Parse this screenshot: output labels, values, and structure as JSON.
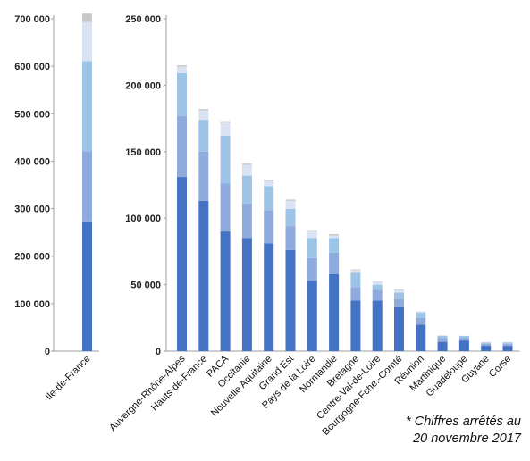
{
  "chart_data": [
    {
      "type": "bar",
      "stacked": true,
      "categories": [
        "Ile-de-France"
      ],
      "segment_colors": [
        "#4472c4",
        "#8faadc",
        "#9dc3e6",
        "#dae3f3",
        "#c9c9c9"
      ],
      "segments": [
        [
          273000,
          148000,
          190000,
          82000,
          18000
        ]
      ],
      "totals": [
        711000
      ],
      "ylim": [
        0,
        700000
      ],
      "yticks": [
        "0",
        "100 000",
        "200 000",
        "300 000",
        "400 000",
        "500 000",
        "600 000",
        "700 000"
      ],
      "grid": false
    },
    {
      "type": "bar",
      "stacked": true,
      "categories": [
        "Auvergne-Rhône-Alpes",
        "Hauts-de-France",
        "PACA",
        "Occitanie",
        "Nouvelle Aquitaine",
        "Grand Est",
        "Pays de la Loire",
        "Normandie",
        "Bretagne",
        "Centre-Val-de-Loire",
        "Bourgogne-Fche.-Comté",
        "Réunion",
        "Martinique",
        "Guadeloupe",
        "Guyane",
        "Corse"
      ],
      "segment_colors": [
        "#4472c4",
        "#8faadc",
        "#9dc3e6",
        "#dae3f3",
        "#c9c9c9"
      ],
      "segments": [
        [
          131000,
          46000,
          32000,
          5000,
          1000
        ],
        [
          113000,
          37000,
          24000,
          7000,
          1000
        ],
        [
          90000,
          36000,
          36000,
          10000,
          1000
        ],
        [
          85000,
          26000,
          21000,
          8000,
          1000
        ],
        [
          81000,
          25000,
          18000,
          4000,
          1000
        ],
        [
          76000,
          18000,
          13000,
          6000,
          1000
        ],
        [
          53000,
          17000,
          15000,
          5000,
          1000
        ],
        [
          58000,
          16000,
          11000,
          2000,
          1000
        ],
        [
          38000,
          10000,
          11000,
          2000,
          500
        ],
        [
          38000,
          8000,
          4000,
          2000,
          500
        ],
        [
          33000,
          6000,
          5000,
          2000,
          500
        ],
        [
          20000,
          5000,
          4000,
          1000,
          0
        ],
        [
          7000,
          3000,
          1500,
          500,
          0
        ],
        [
          8000,
          2000,
          1500,
          0,
          0
        ],
        [
          4000,
          1500,
          1000,
          500,
          0
        ],
        [
          4000,
          1500,
          1000,
          500,
          0
        ]
      ],
      "totals": [
        215000,
        182000,
        173000,
        141000,
        129000,
        114000,
        91000,
        88000,
        62000,
        53000,
        47000,
        30000,
        12000,
        11000,
        7000,
        7000
      ],
      "ylim": [
        0,
        250000
      ],
      "yticks": [
        "0",
        "50 000",
        "100 000",
        "150 000",
        "200 000",
        "250 000"
      ],
      "grid": false
    }
  ],
  "footnote": {
    "line1": "* Chiffres arrêtés au",
    "line2": "20 novembre 2017"
  }
}
